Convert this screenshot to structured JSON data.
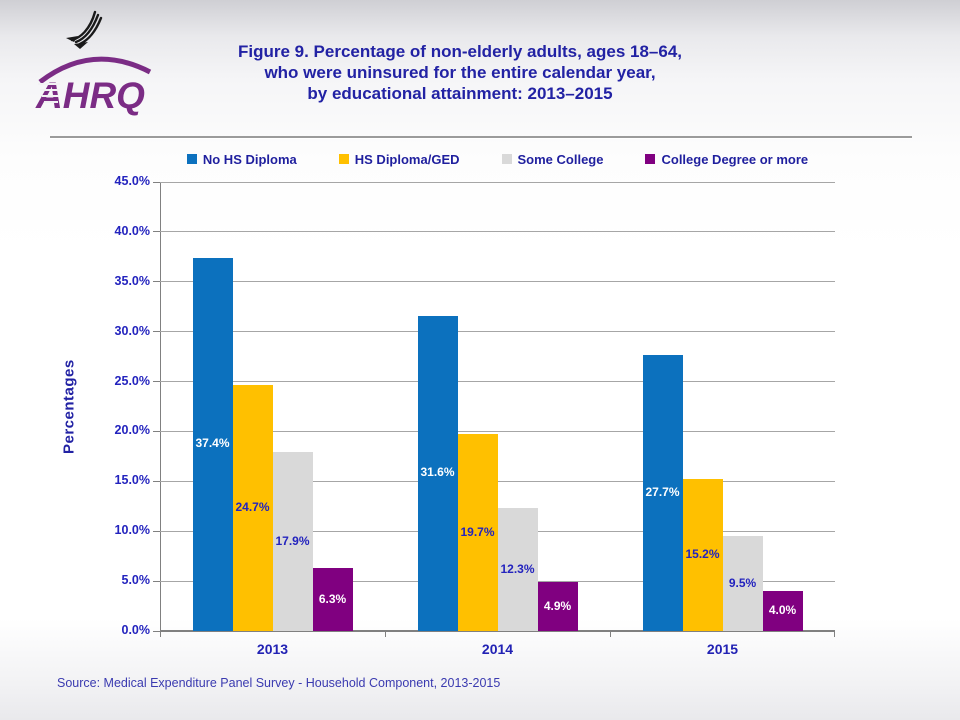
{
  "header": {
    "logo": {
      "org_abbr": "AHRQ"
    },
    "title_lines": [
      "Figure 9. Percentage of non-elderly adults, ages 18–64,",
      "who were uninsured for the entire calendar year,",
      "by educational attainment: 2013–2015"
    ]
  },
  "chart_data": {
    "type": "bar",
    "categories": [
      "2013",
      "2014",
      "2015"
    ],
    "series": [
      {
        "name": "No HS Diploma",
        "color": "#0C71BE",
        "label_color": "#FFFFFF",
        "values": [
          37.4,
          31.6,
          27.7
        ]
      },
      {
        "name": "HS Diploma/GED",
        "color": "#FFC000",
        "label_color": "#2323BE",
        "values": [
          24.7,
          19.7,
          15.2
        ]
      },
      {
        "name": "Some College",
        "color": "#D9D9D9",
        "label_color": "#2323BE",
        "values": [
          17.9,
          12.3,
          9.5
        ]
      },
      {
        "name": "College Degree or more",
        "color": "#800080",
        "label_color": "#FFFFFF",
        "values": [
          6.3,
          4.9,
          4.0
        ]
      }
    ],
    "ylabel": "Percentages",
    "xlabel": "",
    "ylim": [
      0,
      45
    ],
    "ytick_step": 5,
    "ytick_labels": [
      "0.0%",
      "5.0%",
      "10.0%",
      "15.0%",
      "20.0%",
      "25.0%",
      "30.0%",
      "35.0%",
      "40.0%",
      "45.0%"
    ],
    "value_label_suffix": "%",
    "grid": true,
    "legend_position": "top"
  },
  "source_note": "Source:  Medical Expenditure Panel Survey  - Household Component, 2013-2015",
  "colors": {
    "title_text": "#2222A4",
    "tick_text": "#2323BE",
    "category_text": "#2222B4",
    "legend_text": "#1F1F9E",
    "source_text": "#3A3AB0",
    "grid": "#A6A6A6",
    "axis": "#808080",
    "logo_purple": "#7B2C85",
    "eagle_black": "#1A1A1A"
  }
}
